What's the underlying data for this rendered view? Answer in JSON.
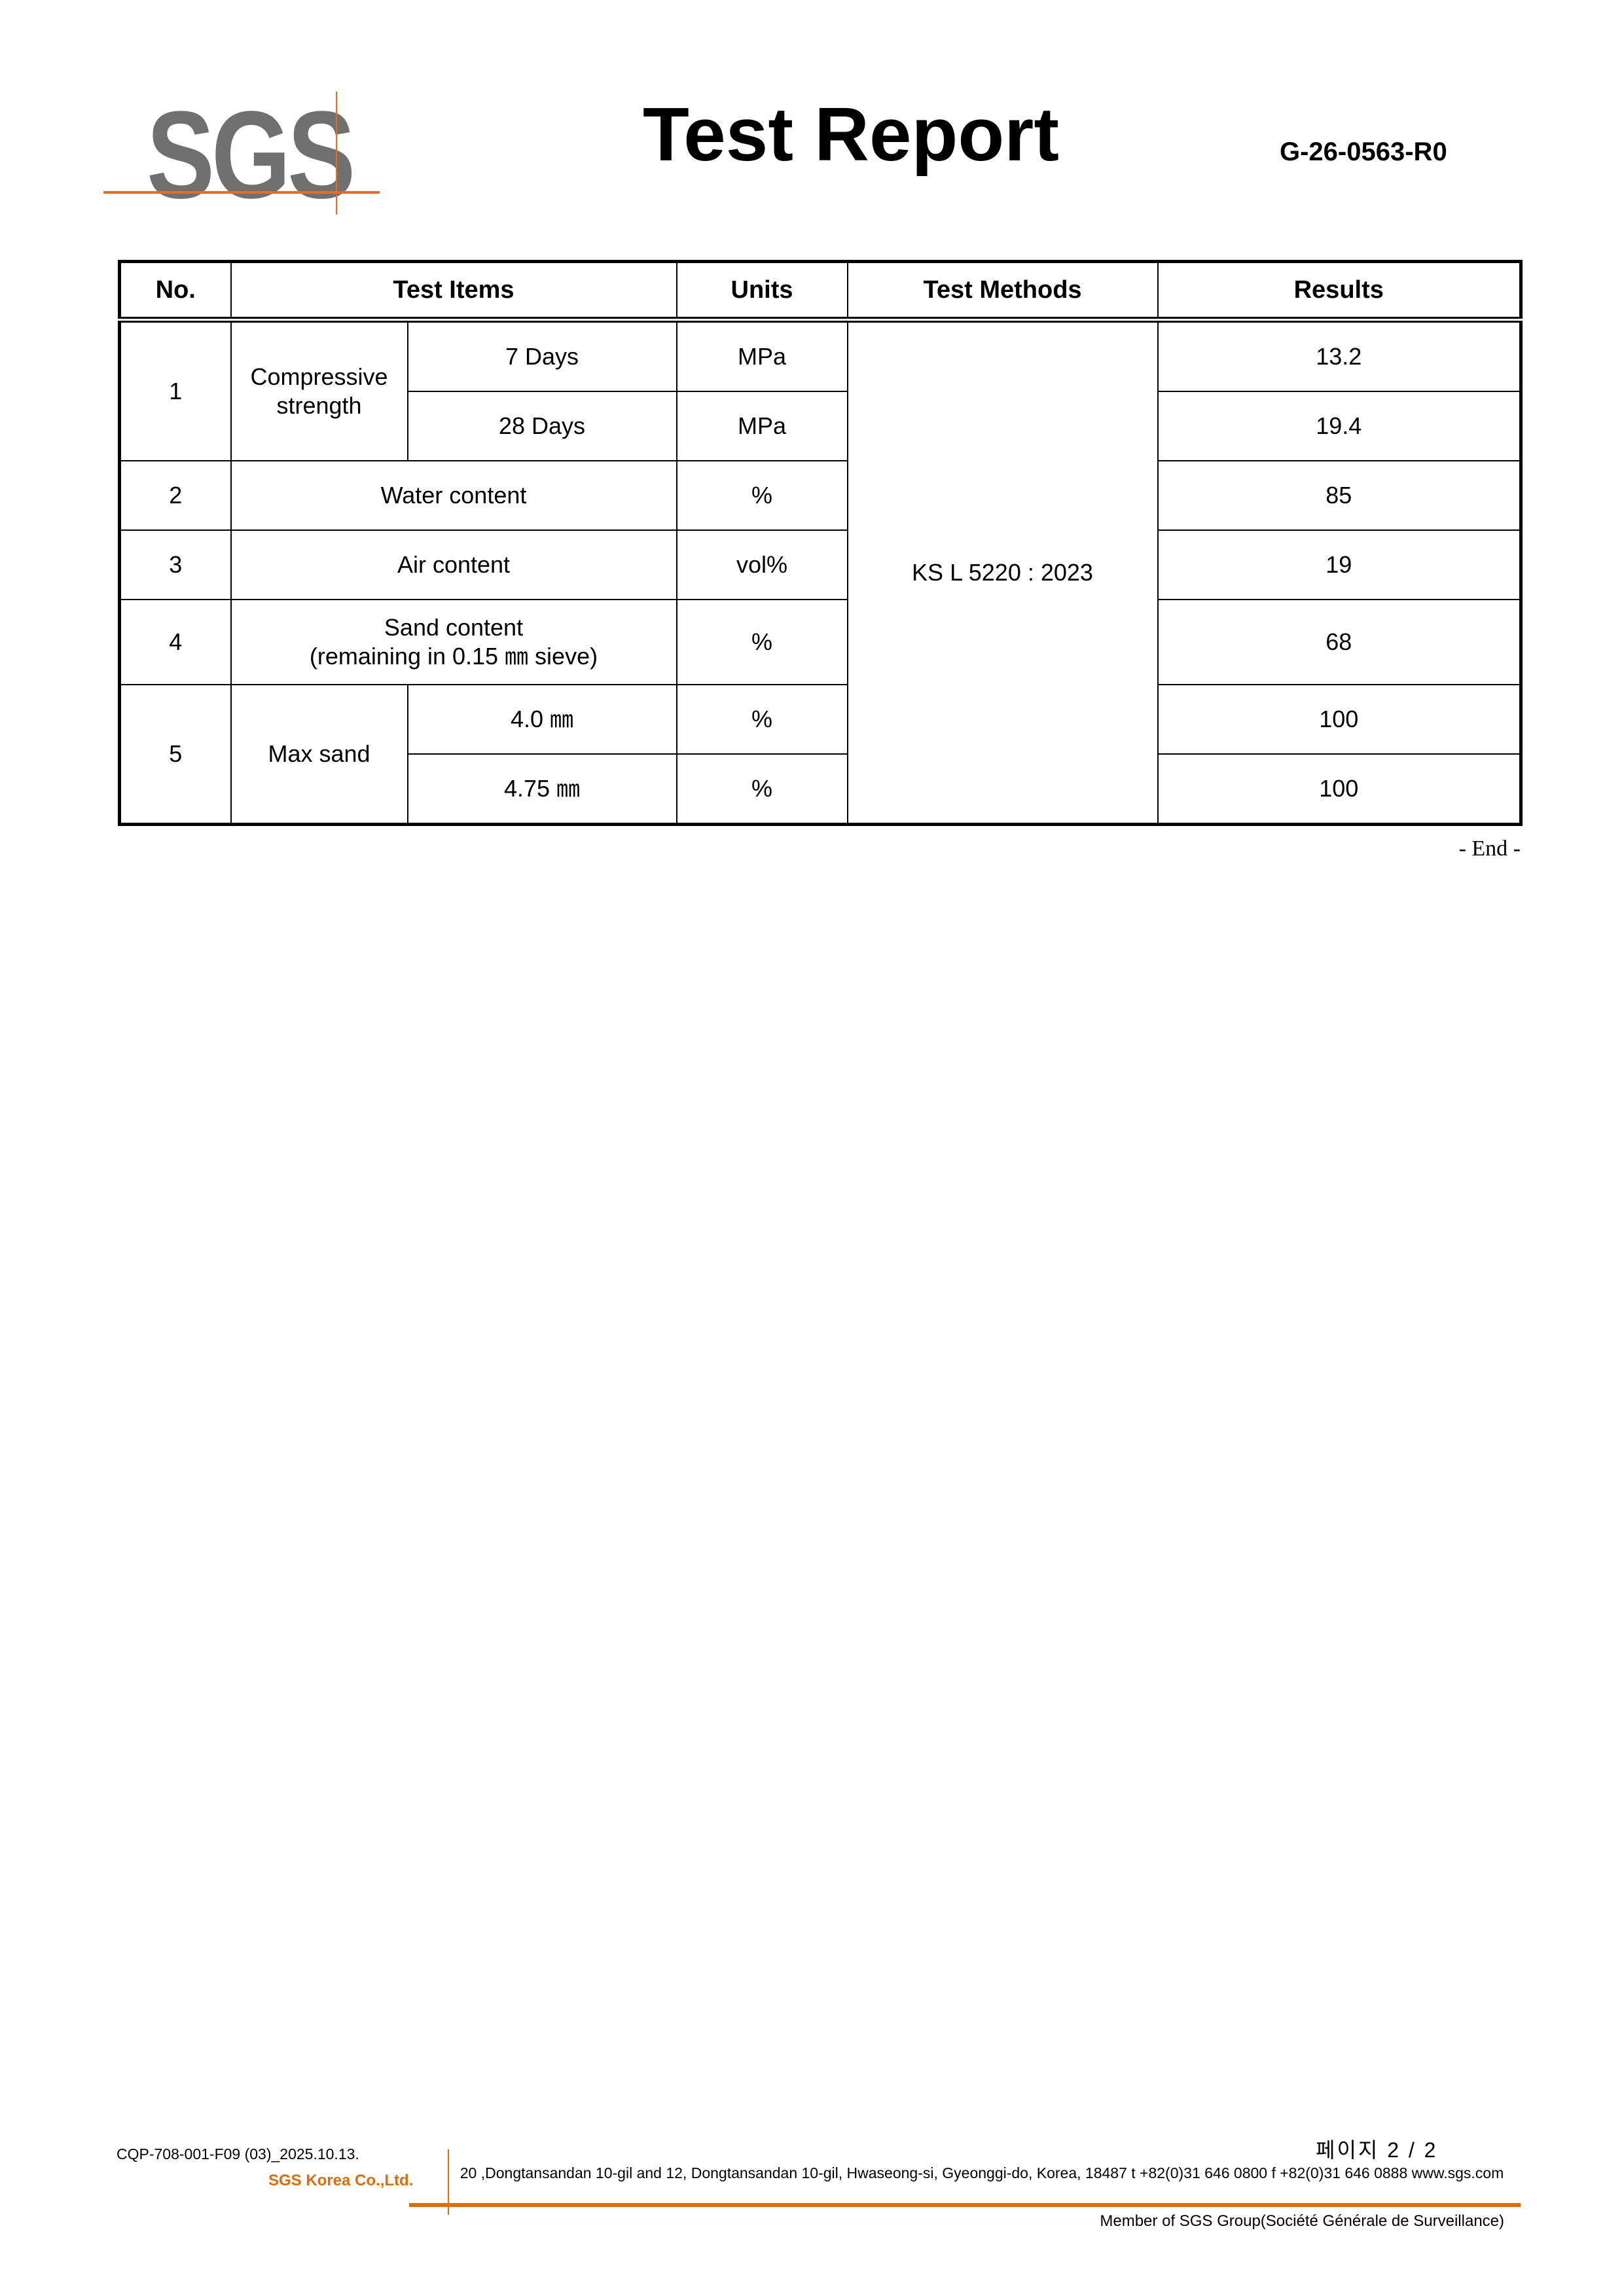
{
  "header": {
    "logo_text": "SGS",
    "title": "Test Report",
    "report_no": "G-26-0563-R0",
    "brand_color": "#e8692a"
  },
  "table": {
    "headers": [
      "No.",
      "Test Items",
      "Units",
      "Test Methods",
      "Results"
    ],
    "method": "KS L 5220 : 2023",
    "rows": [
      {
        "no": "1",
        "item": "Compressive strength",
        "subs": [
          {
            "label": "7 Days",
            "unit": "MPa",
            "result": "13.2"
          },
          {
            "label": "28 Days",
            "unit": "MPa",
            "result": "19.4"
          }
        ]
      },
      {
        "no": "2",
        "item": "Water content",
        "unit": "%",
        "result": "85"
      },
      {
        "no": "3",
        "item": "Air content",
        "unit": "vol%",
        "result": "19"
      },
      {
        "no": "4",
        "item_line1": "Sand content",
        "item_line2": "(remaining in 0.15 ㎜ sieve)",
        "unit": "%",
        "result": "68"
      },
      {
        "no": "5",
        "item": "Max sand",
        "subs": [
          {
            "label": "4.0 ㎜",
            "unit": "%",
            "result": "100"
          },
          {
            "label": "4.75 ㎜",
            "unit": "%",
            "result": "100"
          }
        ]
      }
    ]
  },
  "end_text": "- End -",
  "footer": {
    "form_code": "CQP-708-001-F09 (03)_2025.10.13.",
    "page": "페이지 2 / 2",
    "company": "SGS Korea Co.,Ltd.",
    "address": "20 ,Dongtansandan 10-gil and 12, Dongtansandan 10-gil, Hwaseong-si, Gyeonggi-do, Korea, 18487    t +82(0)31 646 0800 f +82(0)31 646 0888    www.sgs.com",
    "member": "Member of SGS Group(Société Générale de Surveillance)"
  }
}
